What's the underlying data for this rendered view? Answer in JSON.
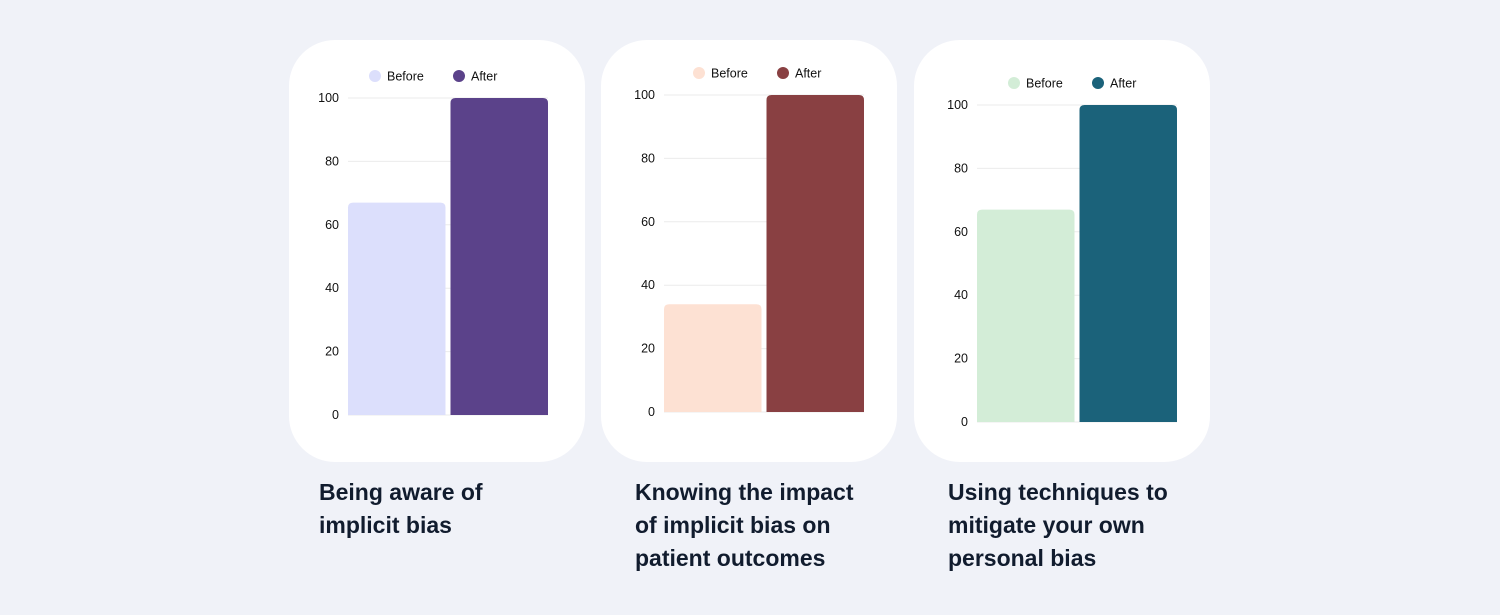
{
  "chart_data": [
    {
      "type": "bar",
      "categories": [
        "Before",
        "After"
      ],
      "values": [
        67,
        100
      ],
      "ylim": [
        0,
        100
      ],
      "yticks": [
        0,
        20,
        40,
        60,
        80,
        100
      ],
      "grid": true,
      "legend_position": "top",
      "legend": [
        "Before",
        "After"
      ],
      "colors": {
        "before": "#dcdffc",
        "after": "#5b428a"
      },
      "title": "Being aware of implicit bias",
      "caption_lines": [
        "Being aware of",
        "implicit bias"
      ]
    },
    {
      "type": "bar",
      "categories": [
        "Before",
        "After"
      ],
      "values": [
        34,
        100
      ],
      "ylim": [
        0,
        100
      ],
      "yticks": [
        0,
        20,
        40,
        60,
        80,
        100
      ],
      "grid": true,
      "legend_position": "top",
      "legend": [
        "Before",
        "After"
      ],
      "colors": {
        "before": "#fde1d3",
        "after": "#894042"
      },
      "title": "Knowing the impact of implicit bias on patient outcomes",
      "caption_lines": [
        "Knowing the impact",
        "of implicit bias on",
        "patient outcomes"
      ]
    },
    {
      "type": "bar",
      "categories": [
        "Before",
        "After"
      ],
      "values": [
        67,
        100
      ],
      "ylim": [
        0,
        100
      ],
      "yticks": [
        0,
        20,
        40,
        60,
        80,
        100
      ],
      "grid": true,
      "legend_position": "top",
      "legend": [
        "Before",
        "After"
      ],
      "colors": {
        "before": "#d3edd7",
        "after": "#1b627a"
      },
      "title": "Using techniques to mitigate your own personal bias",
      "caption_lines": [
        "Using techniques to",
        "mitigate your own",
        "personal bias"
      ]
    }
  ]
}
